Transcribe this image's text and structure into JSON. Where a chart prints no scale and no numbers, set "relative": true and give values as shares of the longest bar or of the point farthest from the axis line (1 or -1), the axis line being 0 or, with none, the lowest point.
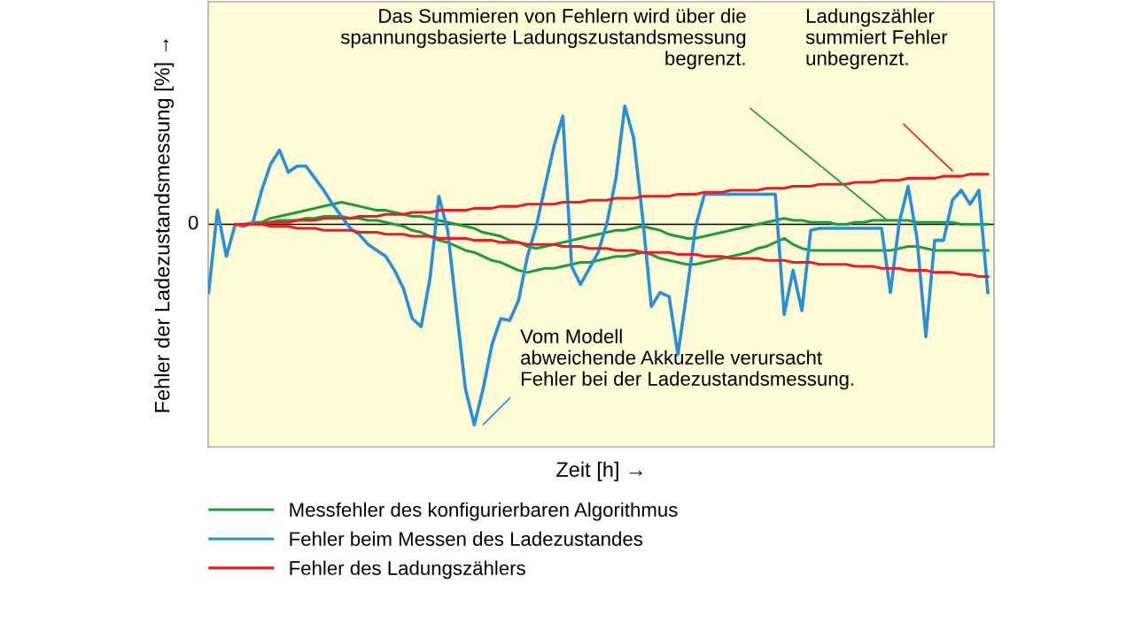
{
  "chart_data": {
    "type": "line",
    "relative": true,
    "legend": "bottom",
    "xlabel": "Zeit [h] →",
    "ylabel": "Fehler der Ladezustandsmessung [%] →",
    "categories": [
      null,
      null,
      null,
      null,
      null,
      null,
      null,
      null,
      null,
      null,
      null,
      null,
      null,
      null,
      null,
      null,
      null,
      null,
      null,
      null,
      null,
      null,
      null,
      null,
      null,
      null,
      null,
      null,
      null,
      null,
      null,
      null,
      null,
      null,
      null,
      null,
      null,
      null,
      null,
      null,
      null,
      null,
      null,
      null,
      null,
      null,
      null,
      null,
      null,
      null,
      null,
      null,
      null,
      null,
      null,
      null,
      null,
      null,
      null,
      null,
      null,
      null,
      null,
      null,
      null,
      null,
      null,
      null,
      null,
      null,
      null,
      null,
      null,
      null,
      null,
      null,
      null,
      null,
      null,
      null,
      null,
      null,
      null,
      null,
      null,
      null,
      null,
      null,
      null
    ],
    "ref_lines": [
      {
        "axis": "y",
        "value": 0,
        "label": "0",
        "color": "#000000"
      }
    ],
    "annotations": [
      "Das Summieren von Fehlern wird über die\nspannungsbasierte Ladungszustandsmessung\nbegrenzt.",
      "Ladungszähler\nsummiert Fehler\nunbegrenzt.",
      "Vom Modell\nabweichende Akkuzelle verursacht\nFehler bei der Ladezustandsmessung."
    ],
    "series": [
      {
        "name": "Messfehler des konfigurierbaren Algorithmus",
        "color": "#1f9a3c",
        "values": [
          null,
          null,
          null,
          0,
          0,
          0.01,
          0.01,
          0.03,
          0.04,
          0.05,
          0.06,
          0.07,
          0.08,
          0.09,
          0.1,
          0.11,
          0.1,
          0.09,
          0.08,
          0.07,
          0.07,
          0.06,
          0.05,
          0.04,
          0.04,
          0.03,
          0.02,
          0.01,
          0.0,
          -0.01,
          -0.02,
          -0.04,
          -0.05,
          -0.06,
          -0.08,
          -0.09,
          -0.11,
          -0.12,
          -0.11,
          -0.1,
          -0.09,
          -0.08,
          -0.07,
          -0.06,
          -0.05,
          -0.04,
          -0.03,
          -0.03,
          -0.02,
          -0.01,
          -0.02,
          -0.03,
          -0.05,
          -0.06,
          -0.07,
          -0.07,
          -0.06,
          -0.05,
          -0.04,
          -0.03,
          -0.02,
          -0.01,
          0.0,
          0.01,
          0.02,
          0.03,
          0.02,
          0.02,
          0.01,
          0.01,
          0.01,
          0.0,
          0.0,
          0.01,
          0.01,
          0.02,
          0.02,
          0.02,
          0.02,
          0.02,
          0.01,
          0.01,
          0.01,
          0.01,
          0.01,
          0.0,
          0.0,
          0.0,
          0.0
        ]
      },
      {
        "color": "#1f9a3c",
        "values": [
          null,
          null,
          null,
          0,
          0,
          0.0,
          0.01,
          0.01,
          0.02,
          0.02,
          0.02,
          0.03,
          0.03,
          0.04,
          0.04,
          0.04,
          0.03,
          0.03,
          0.02,
          0.02,
          0.01,
          0.0,
          -0.01,
          -0.03,
          -0.04,
          -0.06,
          -0.08,
          -0.09,
          -0.11,
          -0.13,
          -0.14,
          -0.16,
          -0.18,
          -0.19,
          -0.21,
          -0.23,
          -0.24,
          -0.23,
          -0.22,
          -0.22,
          -0.21,
          -0.2,
          -0.19,
          -0.19,
          -0.18,
          -0.17,
          -0.16,
          -0.16,
          -0.15,
          -0.14,
          -0.15,
          -0.17,
          -0.18,
          -0.19,
          -0.2,
          -0.2,
          -0.19,
          -0.18,
          -0.17,
          -0.16,
          -0.15,
          -0.14,
          -0.12,
          -0.11,
          -0.09,
          -0.07,
          -0.1,
          -0.12,
          -0.13,
          -0.13,
          -0.13,
          -0.13,
          -0.13,
          -0.13,
          -0.13,
          -0.13,
          -0.13,
          -0.13,
          -0.12,
          -0.11,
          -0.11,
          -0.12,
          -0.13,
          -0.13,
          -0.13,
          -0.13,
          -0.13,
          -0.13,
          -0.13
        ]
      },
      {
        "name": "Fehler beim Messen des Ladezustandes",
        "color": "#2a8fd4",
        "values": [
          -0.34,
          0.07,
          -0.16,
          0.0,
          -0.01,
          0.01,
          0.17,
          0.3,
          0.37,
          0.26,
          0.29,
          0.29,
          0.23,
          0.17,
          0.1,
          0.04,
          -0.02,
          -0.05,
          -0.1,
          -0.13,
          -0.16,
          -0.23,
          -0.32,
          -0.47,
          -0.51,
          -0.27,
          0.14,
          -0.03,
          -0.43,
          -0.82,
          -1.0,
          -0.82,
          -0.6,
          -0.47,
          -0.48,
          -0.38,
          -0.16,
          -0.01,
          0.19,
          0.39,
          0.54,
          -0.21,
          -0.3,
          -0.22,
          -0.14,
          0.01,
          0.23,
          0.59,
          0.43,
          0.04,
          -0.41,
          -0.34,
          -0.36,
          -0.65,
          -0.34,
          -0.01,
          0.15,
          0.15,
          0.15,
          0.15,
          0.15,
          0.15,
          0.15,
          0.15,
          0.15,
          -0.45,
          -0.23,
          -0.43,
          -0.03,
          -0.02,
          -0.02,
          -0.02,
          -0.02,
          -0.02,
          -0.02,
          -0.02,
          -0.02,
          -0.34,
          0.01,
          0.19,
          -0.07,
          -0.56,
          -0.08,
          -0.08,
          0.12,
          0.17,
          0.1,
          0.17,
          -0.34
        ]
      },
      {
        "name": "Fehler des Ladungszählers",
        "color": "#e41f26",
        "values": [
          null,
          null,
          null,
          0,
          0,
          0.0,
          0.0,
          0.01,
          0.01,
          0.01,
          0.02,
          0.02,
          0.02,
          0.03,
          0.03,
          0.03,
          0.03,
          0.04,
          0.04,
          0.04,
          0.05,
          0.05,
          0.05,
          0.06,
          0.06,
          0.06,
          0.07,
          0.07,
          0.07,
          0.07,
          0.08,
          0.08,
          0.08,
          0.09,
          0.09,
          0.09,
          0.1,
          0.1,
          0.1,
          0.1,
          0.11,
          0.11,
          0.11,
          0.12,
          0.12,
          0.12,
          0.13,
          0.13,
          0.13,
          0.14,
          0.14,
          0.14,
          0.14,
          0.15,
          0.15,
          0.15,
          0.16,
          0.16,
          0.16,
          0.17,
          0.17,
          0.17,
          0.17,
          0.18,
          0.18,
          0.18,
          0.19,
          0.19,
          0.19,
          0.2,
          0.2,
          0.2,
          0.2,
          0.21,
          0.21,
          0.21,
          0.22,
          0.22,
          0.22,
          0.23,
          0.23,
          0.23,
          0.23,
          0.24,
          0.24,
          0.24,
          0.25,
          0.25,
          0.25
        ]
      },
      {
        "color": "#e41f26",
        "values": [
          null,
          null,
          null,
          0,
          0,
          0.0,
          0.0,
          -0.01,
          -0.01,
          -0.01,
          -0.02,
          -0.02,
          -0.02,
          -0.03,
          -0.03,
          -0.03,
          -0.03,
          -0.04,
          -0.04,
          -0.04,
          -0.05,
          -0.05,
          -0.05,
          -0.06,
          -0.06,
          -0.06,
          -0.07,
          -0.07,
          -0.07,
          -0.07,
          -0.08,
          -0.08,
          -0.08,
          -0.09,
          -0.09,
          -0.09,
          -0.1,
          -0.1,
          -0.1,
          -0.1,
          -0.11,
          -0.11,
          -0.11,
          -0.12,
          -0.12,
          -0.12,
          -0.13,
          -0.13,
          -0.13,
          -0.14,
          -0.14,
          -0.14,
          -0.14,
          -0.15,
          -0.15,
          -0.15,
          -0.16,
          -0.16,
          -0.16,
          -0.17,
          -0.17,
          -0.17,
          -0.17,
          -0.18,
          -0.18,
          -0.18,
          -0.19,
          -0.19,
          -0.19,
          -0.2,
          -0.2,
          -0.2,
          -0.2,
          -0.21,
          -0.21,
          -0.21,
          -0.22,
          -0.22,
          -0.22,
          -0.23,
          -0.23,
          -0.23,
          -0.24,
          -0.24,
          -0.24,
          -0.25,
          -0.25,
          -0.26,
          -0.26
        ]
      }
    ]
  }
}
